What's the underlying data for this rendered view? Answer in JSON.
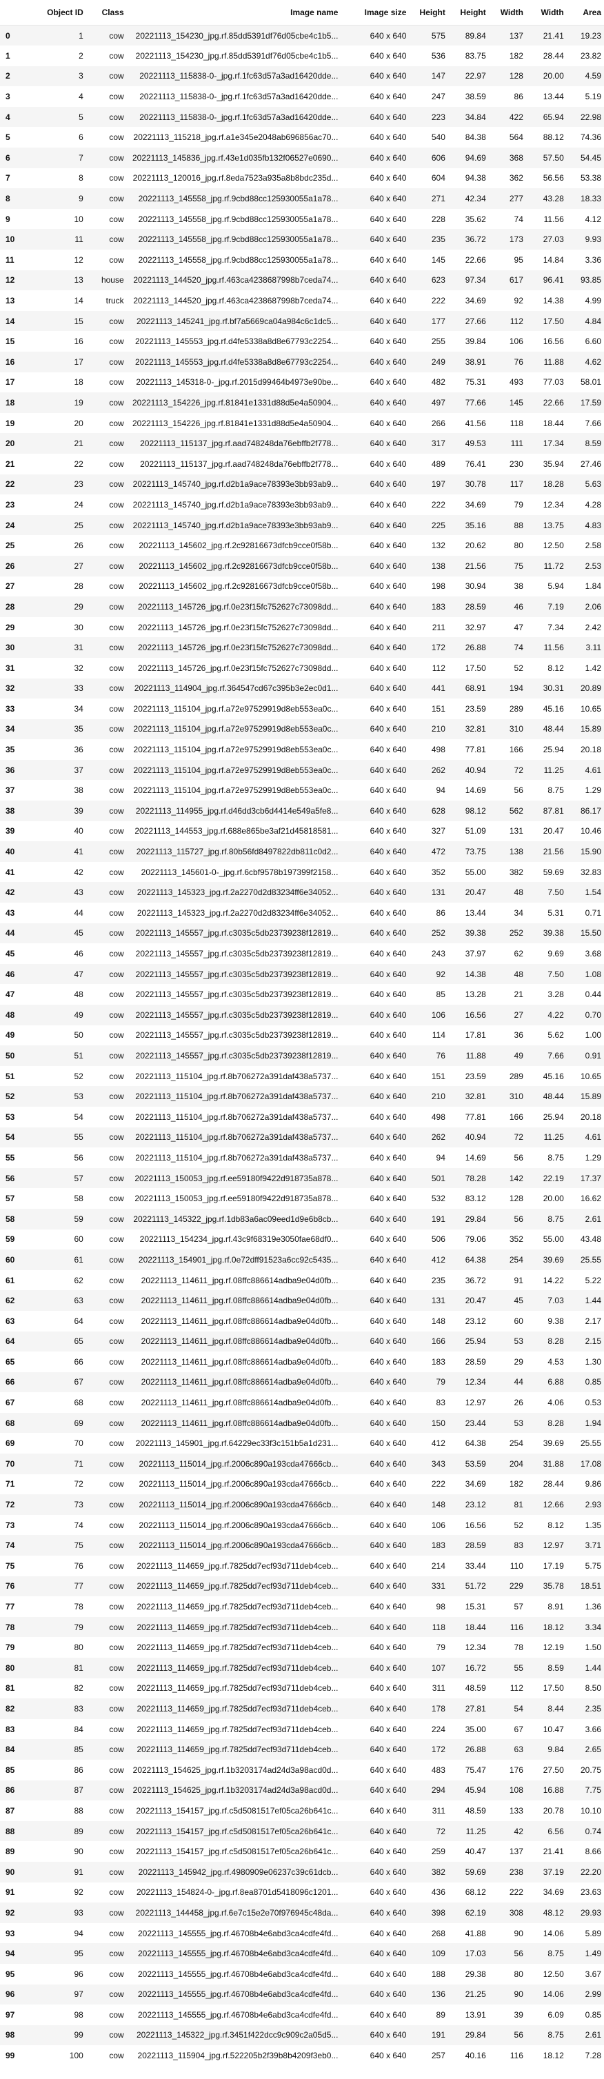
{
  "columns": [
    "",
    "Object ID",
    "Class",
    "Image name",
    "Image size",
    "Height",
    "Height",
    "Width",
    "Width",
    "Area"
  ],
  "rows": [
    [
      "0",
      "1",
      "cow",
      "20221113_154230_jpg.rf.85dd5391df76d05cbe4c1b5...",
      "640 x 640",
      "575",
      "89.84",
      "137",
      "21.41",
      "19.23"
    ],
    [
      "1",
      "2",
      "cow",
      "20221113_154230_jpg.rf.85dd5391df76d05cbe4c1b5...",
      "640 x 640",
      "536",
      "83.75",
      "182",
      "28.44",
      "23.82"
    ],
    [
      "2",
      "3",
      "cow",
      "20221113_115838-0-_jpg.rf.1fc63d57a3ad16420dde...",
      "640 x 640",
      "147",
      "22.97",
      "128",
      "20.00",
      "4.59"
    ],
    [
      "3",
      "4",
      "cow",
      "20221113_115838-0-_jpg.rf.1fc63d57a3ad16420dde...",
      "640 x 640",
      "247",
      "38.59",
      "86",
      "13.44",
      "5.19"
    ],
    [
      "4",
      "5",
      "cow",
      "20221113_115838-0-_jpg.rf.1fc63d57a3ad16420dde...",
      "640 x 640",
      "223",
      "34.84",
      "422",
      "65.94",
      "22.98"
    ],
    [
      "5",
      "6",
      "cow",
      "20221113_115218_jpg.rf.a1e345e2048ab696856ac70...",
      "640 x 640",
      "540",
      "84.38",
      "564",
      "88.12",
      "74.36"
    ],
    [
      "6",
      "7",
      "cow",
      "20221113_145836_jpg.rf.43e1d035fb132f06527e0690...",
      "640 x 640",
      "606",
      "94.69",
      "368",
      "57.50",
      "54.45"
    ],
    [
      "7",
      "8",
      "cow",
      "20221113_120016_jpg.rf.8eda7523a935a8b8bdc235d...",
      "640 x 640",
      "604",
      "94.38",
      "362",
      "56.56",
      "53.38"
    ],
    [
      "8",
      "9",
      "cow",
      "20221113_145558_jpg.rf.9cbd88cc125930055a1a78...",
      "640 x 640",
      "271",
      "42.34",
      "277",
      "43.28",
      "18.33"
    ],
    [
      "9",
      "10",
      "cow",
      "20221113_145558_jpg.rf.9cbd88cc125930055a1a78...",
      "640 x 640",
      "228",
      "35.62",
      "74",
      "11.56",
      "4.12"
    ],
    [
      "10",
      "11",
      "cow",
      "20221113_145558_jpg.rf.9cbd88cc125930055a1a78...",
      "640 x 640",
      "235",
      "36.72",
      "173",
      "27.03",
      "9.93"
    ],
    [
      "11",
      "12",
      "cow",
      "20221113_145558_jpg.rf.9cbd88cc125930055a1a78...",
      "640 x 640",
      "145",
      "22.66",
      "95",
      "14.84",
      "3.36"
    ],
    [
      "12",
      "13",
      "house",
      "20221113_144520_jpg.rf.463ca4238687998b7ceda74...",
      "640 x 640",
      "623",
      "97.34",
      "617",
      "96.41",
      "93.85"
    ],
    [
      "13",
      "14",
      "truck",
      "20221113_144520_jpg.rf.463ca4238687998b7ceda74...",
      "640 x 640",
      "222",
      "34.69",
      "92",
      "14.38",
      "4.99"
    ],
    [
      "14",
      "15",
      "cow",
      "20221113_145241_jpg.rf.bf7a5669ca04a984c6c1dc5...",
      "640 x 640",
      "177",
      "27.66",
      "112",
      "17.50",
      "4.84"
    ],
    [
      "15",
      "16",
      "cow",
      "20221113_145553_jpg.rf.d4fe5338a8d8e67793c2254...",
      "640 x 640",
      "255",
      "39.84",
      "106",
      "16.56",
      "6.60"
    ],
    [
      "16",
      "17",
      "cow",
      "20221113_145553_jpg.rf.d4fe5338a8d8e67793c2254...",
      "640 x 640",
      "249",
      "38.91",
      "76",
      "11.88",
      "4.62"
    ],
    [
      "17",
      "18",
      "cow",
      "20221113_145318-0-_jpg.rf.2015d99464b4973e90be...",
      "640 x 640",
      "482",
      "75.31",
      "493",
      "77.03",
      "58.01"
    ],
    [
      "18",
      "19",
      "cow",
      "20221113_154226_jpg.rf.81841e1331d88d5e4a50904...",
      "640 x 640",
      "497",
      "77.66",
      "145",
      "22.66",
      "17.59"
    ],
    [
      "19",
      "20",
      "cow",
      "20221113_154226_jpg.rf.81841e1331d88d5e4a50904...",
      "640 x 640",
      "266",
      "41.56",
      "118",
      "18.44",
      "7.66"
    ],
    [
      "20",
      "21",
      "cow",
      "20221113_115137_jpg.rf.aad748248da76ebffb2f778...",
      "640 x 640",
      "317",
      "49.53",
      "111",
      "17.34",
      "8.59"
    ],
    [
      "21",
      "22",
      "cow",
      "20221113_115137_jpg.rf.aad748248da76ebffb2f778...",
      "640 x 640",
      "489",
      "76.41",
      "230",
      "35.94",
      "27.46"
    ],
    [
      "22",
      "23",
      "cow",
      "20221113_145740_jpg.rf.d2b1a9ace78393e3bb93ab9...",
      "640 x 640",
      "197",
      "30.78",
      "117",
      "18.28",
      "5.63"
    ],
    [
      "23",
      "24",
      "cow",
      "20221113_145740_jpg.rf.d2b1a9ace78393e3bb93ab9...",
      "640 x 640",
      "222",
      "34.69",
      "79",
      "12.34",
      "4.28"
    ],
    [
      "24",
      "25",
      "cow",
      "20221113_145740_jpg.rf.d2b1a9ace78393e3bb93ab9...",
      "640 x 640",
      "225",
      "35.16",
      "88",
      "13.75",
      "4.83"
    ],
    [
      "25",
      "26",
      "cow",
      "20221113_145602_jpg.rf.2c92816673dfcb9cce0f58b...",
      "640 x 640",
      "132",
      "20.62",
      "80",
      "12.50",
      "2.58"
    ],
    [
      "26",
      "27",
      "cow",
      "20221113_145602_jpg.rf.2c92816673dfcb9cce0f58b...",
      "640 x 640",
      "138",
      "21.56",
      "75",
      "11.72",
      "2.53"
    ],
    [
      "27",
      "28",
      "cow",
      "20221113_145602_jpg.rf.2c92816673dfcb9cce0f58b...",
      "640 x 640",
      "198",
      "30.94",
      "38",
      "5.94",
      "1.84"
    ],
    [
      "28",
      "29",
      "cow",
      "20221113_145726_jpg.rf.0e23f15fc752627c73098dd...",
      "640 x 640",
      "183",
      "28.59",
      "46",
      "7.19",
      "2.06"
    ],
    [
      "29",
      "30",
      "cow",
      "20221113_145726_jpg.rf.0e23f15fc752627c73098dd...",
      "640 x 640",
      "211",
      "32.97",
      "47",
      "7.34",
      "2.42"
    ],
    [
      "30",
      "31",
      "cow",
      "20221113_145726_jpg.rf.0e23f15fc752627c73098dd...",
      "640 x 640",
      "172",
      "26.88",
      "74",
      "11.56",
      "3.11"
    ],
    [
      "31",
      "32",
      "cow",
      "20221113_145726_jpg.rf.0e23f15fc752627c73098dd...",
      "640 x 640",
      "112",
      "17.50",
      "52",
      "8.12",
      "1.42"
    ],
    [
      "32",
      "33",
      "cow",
      "20221113_114904_jpg.rf.364547cd67c395b3e2ec0d1...",
      "640 x 640",
      "441",
      "68.91",
      "194",
      "30.31",
      "20.89"
    ],
    [
      "33",
      "34",
      "cow",
      "20221113_115104_jpg.rf.a72e97529919d8eb553ea0c...",
      "640 x 640",
      "151",
      "23.59",
      "289",
      "45.16",
      "10.65"
    ],
    [
      "34",
      "35",
      "cow",
      "20221113_115104_jpg.rf.a72e97529919d8eb553ea0c...",
      "640 x 640",
      "210",
      "32.81",
      "310",
      "48.44",
      "15.89"
    ],
    [
      "35",
      "36",
      "cow",
      "20221113_115104_jpg.rf.a72e97529919d8eb553ea0c...",
      "640 x 640",
      "498",
      "77.81",
      "166",
      "25.94",
      "20.18"
    ],
    [
      "36",
      "37",
      "cow",
      "20221113_115104_jpg.rf.a72e97529919d8eb553ea0c...",
      "640 x 640",
      "262",
      "40.94",
      "72",
      "11.25",
      "4.61"
    ],
    [
      "37",
      "38",
      "cow",
      "20221113_115104_jpg.rf.a72e97529919d8eb553ea0c...",
      "640 x 640",
      "94",
      "14.69",
      "56",
      "8.75",
      "1.29"
    ],
    [
      "38",
      "39",
      "cow",
      "20221113_114955_jpg.rf.d46dd3cb6d4414e549a5fe8...",
      "640 x 640",
      "628",
      "98.12",
      "562",
      "87.81",
      "86.17"
    ],
    [
      "39",
      "40",
      "cow",
      "20221113_144553_jpg.rf.688e865be3af21d45818581...",
      "640 x 640",
      "327",
      "51.09",
      "131",
      "20.47",
      "10.46"
    ],
    [
      "40",
      "41",
      "cow",
      "20221113_115727_jpg.rf.80b56fd8497822db811c0d2...",
      "640 x 640",
      "472",
      "73.75",
      "138",
      "21.56",
      "15.90"
    ],
    [
      "41",
      "42",
      "cow",
      "20221113_145601-0-_jpg.rf.6cbf9578b197399f2158...",
      "640 x 640",
      "352",
      "55.00",
      "382",
      "59.69",
      "32.83"
    ],
    [
      "42",
      "43",
      "cow",
      "20221113_145323_jpg.rf.2a2270d2d83234ff6e34052...",
      "640 x 640",
      "131",
      "20.47",
      "48",
      "7.50",
      "1.54"
    ],
    [
      "43",
      "44",
      "cow",
      "20221113_145323_jpg.rf.2a2270d2d83234ff6e34052...",
      "640 x 640",
      "86",
      "13.44",
      "34",
      "5.31",
      "0.71"
    ],
    [
      "44",
      "45",
      "cow",
      "20221113_145557_jpg.rf.c3035c5db23739238f12819...",
      "640 x 640",
      "252",
      "39.38",
      "252",
      "39.38",
      "15.50"
    ],
    [
      "45",
      "46",
      "cow",
      "20221113_145557_jpg.rf.c3035c5db23739238f12819...",
      "640 x 640",
      "243",
      "37.97",
      "62",
      "9.69",
      "3.68"
    ],
    [
      "46",
      "47",
      "cow",
      "20221113_145557_jpg.rf.c3035c5db23739238f12819...",
      "640 x 640",
      "92",
      "14.38",
      "48",
      "7.50",
      "1.08"
    ],
    [
      "47",
      "48",
      "cow",
      "20221113_145557_jpg.rf.c3035c5db23739238f12819...",
      "640 x 640",
      "85",
      "13.28",
      "21",
      "3.28",
      "0.44"
    ],
    [
      "48",
      "49",
      "cow",
      "20221113_145557_jpg.rf.c3035c5db23739238f12819...",
      "640 x 640",
      "106",
      "16.56",
      "27",
      "4.22",
      "0.70"
    ],
    [
      "49",
      "50",
      "cow",
      "20221113_145557_jpg.rf.c3035c5db23739238f12819...",
      "640 x 640",
      "114",
      "17.81",
      "36",
      "5.62",
      "1.00"
    ],
    [
      "50",
      "51",
      "cow",
      "20221113_145557_jpg.rf.c3035c5db23739238f12819...",
      "640 x 640",
      "76",
      "11.88",
      "49",
      "7.66",
      "0.91"
    ],
    [
      "51",
      "52",
      "cow",
      "20221113_115104_jpg.rf.8b706272a391daf438a5737...",
      "640 x 640",
      "151",
      "23.59",
      "289",
      "45.16",
      "10.65"
    ],
    [
      "52",
      "53",
      "cow",
      "20221113_115104_jpg.rf.8b706272a391daf438a5737...",
      "640 x 640",
      "210",
      "32.81",
      "310",
      "48.44",
      "15.89"
    ],
    [
      "53",
      "54",
      "cow",
      "20221113_115104_jpg.rf.8b706272a391daf438a5737...",
      "640 x 640",
      "498",
      "77.81",
      "166",
      "25.94",
      "20.18"
    ],
    [
      "54",
      "55",
      "cow",
      "20221113_115104_jpg.rf.8b706272a391daf438a5737...",
      "640 x 640",
      "262",
      "40.94",
      "72",
      "11.25",
      "4.61"
    ],
    [
      "55",
      "56",
      "cow",
      "20221113_115104_jpg.rf.8b706272a391daf438a5737...",
      "640 x 640",
      "94",
      "14.69",
      "56",
      "8.75",
      "1.29"
    ],
    [
      "56",
      "57",
      "cow",
      "20221113_150053_jpg.rf.ee59180f9422d918735a878...",
      "640 x 640",
      "501",
      "78.28",
      "142",
      "22.19",
      "17.37"
    ],
    [
      "57",
      "58",
      "cow",
      "20221113_150053_jpg.rf.ee59180f9422d918735a878...",
      "640 x 640",
      "532",
      "83.12",
      "128",
      "20.00",
      "16.62"
    ],
    [
      "58",
      "59",
      "cow",
      "20221113_145322_jpg.rf.1db83a6ac09eed1d9e6b8cb...",
      "640 x 640",
      "191",
      "29.84",
      "56",
      "8.75",
      "2.61"
    ],
    [
      "59",
      "60",
      "cow",
      "20221113_154234_jpg.rf.43c9f68319e3050fae68df0...",
      "640 x 640",
      "506",
      "79.06",
      "352",
      "55.00",
      "43.48"
    ],
    [
      "60",
      "61",
      "cow",
      "20221113_154901_jpg.rf.0e72dff91523a6cc92c5435...",
      "640 x 640",
      "412",
      "64.38",
      "254",
      "39.69",
      "25.55"
    ],
    [
      "61",
      "62",
      "cow",
      "20221113_114611_jpg.rf.08ffc886614adba9e04d0fb...",
      "640 x 640",
      "235",
      "36.72",
      "91",
      "14.22",
      "5.22"
    ],
    [
      "62",
      "63",
      "cow",
      "20221113_114611_jpg.rf.08ffc886614adba9e04d0fb...",
      "640 x 640",
      "131",
      "20.47",
      "45",
      "7.03",
      "1.44"
    ],
    [
      "63",
      "64",
      "cow",
      "20221113_114611_jpg.rf.08ffc886614adba9e04d0fb...",
      "640 x 640",
      "148",
      "23.12",
      "60",
      "9.38",
      "2.17"
    ],
    [
      "64",
      "65",
      "cow",
      "20221113_114611_jpg.rf.08ffc886614adba9e04d0fb...",
      "640 x 640",
      "166",
      "25.94",
      "53",
      "8.28",
      "2.15"
    ],
    [
      "65",
      "66",
      "cow",
      "20221113_114611_jpg.rf.08ffc886614adba9e04d0fb...",
      "640 x 640",
      "183",
      "28.59",
      "29",
      "4.53",
      "1.30"
    ],
    [
      "66",
      "67",
      "cow",
      "20221113_114611_jpg.rf.08ffc886614adba9e04d0fb...",
      "640 x 640",
      "79",
      "12.34",
      "44",
      "6.88",
      "0.85"
    ],
    [
      "67",
      "68",
      "cow",
      "20221113_114611_jpg.rf.08ffc886614adba9e04d0fb...",
      "640 x 640",
      "83",
      "12.97",
      "26",
      "4.06",
      "0.53"
    ],
    [
      "68",
      "69",
      "cow",
      "20221113_114611_jpg.rf.08ffc886614adba9e04d0fb...",
      "640 x 640",
      "150",
      "23.44",
      "53",
      "8.28",
      "1.94"
    ],
    [
      "69",
      "70",
      "cow",
      "20221113_145901_jpg.rf.64229ec33f3c151b5a1d231...",
      "640 x 640",
      "412",
      "64.38",
      "254",
      "39.69",
      "25.55"
    ],
    [
      "70",
      "71",
      "cow",
      "20221113_115014_jpg.rf.2006c890a193cda47666cb...",
      "640 x 640",
      "343",
      "53.59",
      "204",
      "31.88",
      "17.08"
    ],
    [
      "71",
      "72",
      "cow",
      "20221113_115014_jpg.rf.2006c890a193cda47666cb...",
      "640 x 640",
      "222",
      "34.69",
      "182",
      "28.44",
      "9.86"
    ],
    [
      "72",
      "73",
      "cow",
      "20221113_115014_jpg.rf.2006c890a193cda47666cb...",
      "640 x 640",
      "148",
      "23.12",
      "81",
      "12.66",
      "2.93"
    ],
    [
      "73",
      "74",
      "cow",
      "20221113_115014_jpg.rf.2006c890a193cda47666cb...",
      "640 x 640",
      "106",
      "16.56",
      "52",
      "8.12",
      "1.35"
    ],
    [
      "74",
      "75",
      "cow",
      "20221113_115014_jpg.rf.2006c890a193cda47666cb...",
      "640 x 640",
      "183",
      "28.59",
      "83",
      "12.97",
      "3.71"
    ],
    [
      "75",
      "76",
      "cow",
      "20221113_114659_jpg.rf.7825dd7ecf93d711deb4ceb...",
      "640 x 640",
      "214",
      "33.44",
      "110",
      "17.19",
      "5.75"
    ],
    [
      "76",
      "77",
      "cow",
      "20221113_114659_jpg.rf.7825dd7ecf93d711deb4ceb...",
      "640 x 640",
      "331",
      "51.72",
      "229",
      "35.78",
      "18.51"
    ],
    [
      "77",
      "78",
      "cow",
      "20221113_114659_jpg.rf.7825dd7ecf93d711deb4ceb...",
      "640 x 640",
      "98",
      "15.31",
      "57",
      "8.91",
      "1.36"
    ],
    [
      "78",
      "79",
      "cow",
      "20221113_114659_jpg.rf.7825dd7ecf93d711deb4ceb...",
      "640 x 640",
      "118",
      "18.44",
      "116",
      "18.12",
      "3.34"
    ],
    [
      "79",
      "80",
      "cow",
      "20221113_114659_jpg.rf.7825dd7ecf93d711deb4ceb...",
      "640 x 640",
      "79",
      "12.34",
      "78",
      "12.19",
      "1.50"
    ],
    [
      "80",
      "81",
      "cow",
      "20221113_114659_jpg.rf.7825dd7ecf93d711deb4ceb...",
      "640 x 640",
      "107",
      "16.72",
      "55",
      "8.59",
      "1.44"
    ],
    [
      "81",
      "82",
      "cow",
      "20221113_114659_jpg.rf.7825dd7ecf93d711deb4ceb...",
      "640 x 640",
      "311",
      "48.59",
      "112",
      "17.50",
      "8.50"
    ],
    [
      "82",
      "83",
      "cow",
      "20221113_114659_jpg.rf.7825dd7ecf93d711deb4ceb...",
      "640 x 640",
      "178",
      "27.81",
      "54",
      "8.44",
      "2.35"
    ],
    [
      "83",
      "84",
      "cow",
      "20221113_114659_jpg.rf.7825dd7ecf93d711deb4ceb...",
      "640 x 640",
      "224",
      "35.00",
      "67",
      "10.47",
      "3.66"
    ],
    [
      "84",
      "85",
      "cow",
      "20221113_114659_jpg.rf.7825dd7ecf93d711deb4ceb...",
      "640 x 640",
      "172",
      "26.88",
      "63",
      "9.84",
      "2.65"
    ],
    [
      "85",
      "86",
      "cow",
      "20221113_154625_jpg.rf.1b3203174ad24d3a98acd0d...",
      "640 x 640",
      "483",
      "75.47",
      "176",
      "27.50",
      "20.75"
    ],
    [
      "86",
      "87",
      "cow",
      "20221113_154625_jpg.rf.1b3203174ad24d3a98acd0d...",
      "640 x 640",
      "294",
      "45.94",
      "108",
      "16.88",
      "7.75"
    ],
    [
      "87",
      "88",
      "cow",
      "20221113_154157_jpg.rf.c5d5081517ef05ca26b641c...",
      "640 x 640",
      "311",
      "48.59",
      "133",
      "20.78",
      "10.10"
    ],
    [
      "88",
      "89",
      "cow",
      "20221113_154157_jpg.rf.c5d5081517ef05ca26b641c...",
      "640 x 640",
      "72",
      "11.25",
      "42",
      "6.56",
      "0.74"
    ],
    [
      "89",
      "90",
      "cow",
      "20221113_154157_jpg.rf.c5d5081517ef05ca26b641c...",
      "640 x 640",
      "259",
      "40.47",
      "137",
      "21.41",
      "8.66"
    ],
    [
      "90",
      "91",
      "cow",
      "20221113_145942_jpg.rf.4980909e06237c39c61dcb...",
      "640 x 640",
      "382",
      "59.69",
      "238",
      "37.19",
      "22.20"
    ],
    [
      "91",
      "92",
      "cow",
      "20221113_154824-0-_jpg.rf.8ea8701d5418096c1201...",
      "640 x 640",
      "436",
      "68.12",
      "222",
      "34.69",
      "23.63"
    ],
    [
      "92",
      "93",
      "cow",
      "20221113_144458_jpg.rf.6e7c15e2e70f976945c48da...",
      "640 x 640",
      "398",
      "62.19",
      "308",
      "48.12",
      "29.93"
    ],
    [
      "93",
      "94",
      "cow",
      "20221113_145555_jpg.rf.46708b4e6abd3ca4cdfe4fd...",
      "640 x 640",
      "268",
      "41.88",
      "90",
      "14.06",
      "5.89"
    ],
    [
      "94",
      "95",
      "cow",
      "20221113_145555_jpg.rf.46708b4e6abd3ca4cdfe4fd...",
      "640 x 640",
      "109",
      "17.03",
      "56",
      "8.75",
      "1.49"
    ],
    [
      "95",
      "96",
      "cow",
      "20221113_145555_jpg.rf.46708b4e6abd3ca4cdfe4fd...",
      "640 x 640",
      "188",
      "29.38",
      "80",
      "12.50",
      "3.67"
    ],
    [
      "96",
      "97",
      "cow",
      "20221113_145555_jpg.rf.46708b4e6abd3ca4cdfe4fd...",
      "640 x 640",
      "136",
      "21.25",
      "90",
      "14.06",
      "2.99"
    ],
    [
      "97",
      "98",
      "cow",
      "20221113_145555_jpg.rf.46708b4e6abd3ca4cdfe4fd...",
      "640 x 640",
      "89",
      "13.91",
      "39",
      "6.09",
      "0.85"
    ],
    [
      "98",
      "99",
      "cow",
      "20221113_145322_jpg.rf.3451f422dcc9c909c2a05d5...",
      "640 x 640",
      "191",
      "29.84",
      "56",
      "8.75",
      "2.61"
    ],
    [
      "99",
      "100",
      "cow",
      "20221113_115904_jpg.rf.522205b2f39b8b4209f3eb0...",
      "640 x 640",
      "257",
      "40.16",
      "116",
      "18.12",
      "7.28"
    ]
  ]
}
